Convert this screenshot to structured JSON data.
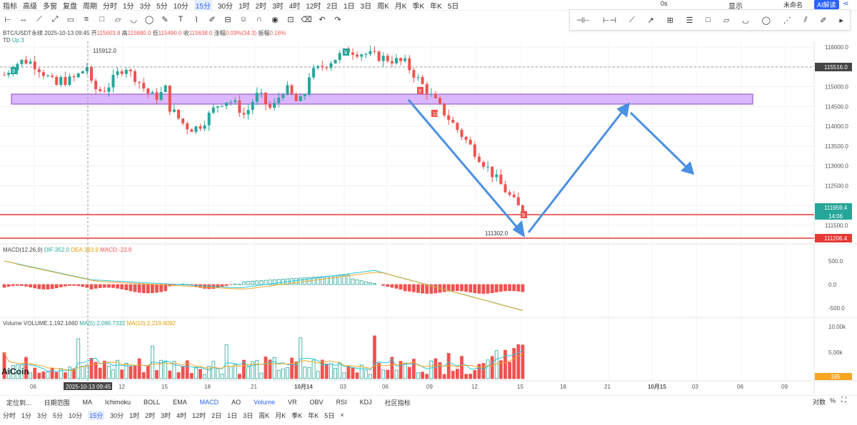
{
  "topbar": {
    "left": [
      "指标",
      "高级",
      "多窗",
      "复盘",
      "周期"
    ],
    "timeframes": [
      "分时",
      "1分",
      "3分",
      "5分",
      "10分",
      "15分",
      "30分",
      "1时",
      "2时",
      "3时",
      "4时",
      "12时",
      "2日",
      "1日",
      "3日",
      "周K",
      "月K",
      "季K",
      "年K",
      "5日"
    ],
    "active_tf": "15分",
    "indicator_flags": [
      "主",
      "大",
      "筹"
    ],
    "right": [
      "0s",
      "显示",
      "未命名",
      "AI解读"
    ]
  },
  "chart_info": {
    "symbol": "BTC/USDT永续",
    "datetime": "2025-10-13 09:45",
    "open_label": "开",
    "open": "115603.8",
    "high_label": "高",
    "high": "115680.0",
    "low_label": "低",
    "low": "115490.0",
    "close_label": "收",
    "close": "115638.0",
    "change_label": "涨幅",
    "change": "0.03%(34.3)",
    "amp_label": "振幅",
    "amp": "0.16%",
    "td_label": "TD",
    "td_value": "Up:3"
  },
  "price_axis": [
    "116000.0",
    "115500.0",
    "115000.0",
    "114500.0",
    "114000.0",
    "113500.0",
    "113000.0",
    "112500.0",
    "112000.0",
    "111500.0"
  ],
  "price_tags": {
    "current": "115516.0",
    "last": "111959.4",
    "countdown": "14:06",
    "support": "111206.4"
  },
  "annotations": {
    "high_mark": "115912.0",
    "low_mark": "111302.0"
  },
  "td_labels": [
    "9",
    "9",
    "9",
    "13",
    "9"
  ],
  "macd": {
    "label": "MACD(12,26,9)",
    "dif": "DIF:352.0",
    "dea": "DEA:363.9",
    "macd": "MACD:-23.8",
    "axis": [
      "500.0",
      "0.0",
      "-500.0"
    ]
  },
  "volume": {
    "label": "Volume",
    "vol": "VOLUME:1,192.1660",
    "ma5": "MA(5):2,086.7332",
    "ma10": "MA(10):2,219.6092",
    "axis": [
      "10.00k",
      "5.00k"
    ],
    "tag": "195"
  },
  "watermark": "AiCoin",
  "time_axis": [
    "06",
    "2025-10-13 09:45",
    "12",
    "15",
    "18",
    "21",
    "10月14",
    "03",
    "06",
    "09",
    "12",
    "15",
    "18",
    "21",
    "10月15",
    "03",
    "06",
    "09"
  ],
  "bottom_tabs": {
    "left": [
      "定位到...",
      "日期范围"
    ],
    "indicators": [
      "MA",
      "Ichimoku",
      "BOLL",
      "EMA",
      "MACD",
      "AO",
      "Volume",
      "VR",
      "OBV",
      "RSI",
      "KDJ",
      "社区指标"
    ],
    "active": [
      "MACD",
      "Volume"
    ],
    "right": [
      "对数",
      "%"
    ]
  },
  "bottom_timeframes": [
    "分时",
    "1分",
    "3分",
    "5分",
    "10分",
    "15分",
    "30分",
    "1时",
    "2时",
    "3时",
    "4时",
    "12时",
    "2日",
    "1日",
    "3日",
    "周K",
    "月K",
    "季K",
    "年K",
    "5日"
  ],
  "colors": {
    "up": "#26a69a",
    "down": "#ef5350",
    "zone": "#cc99ff",
    "arrow": "#4a90e2",
    "support": "#e53935",
    "accent": "#2962ff"
  }
}
